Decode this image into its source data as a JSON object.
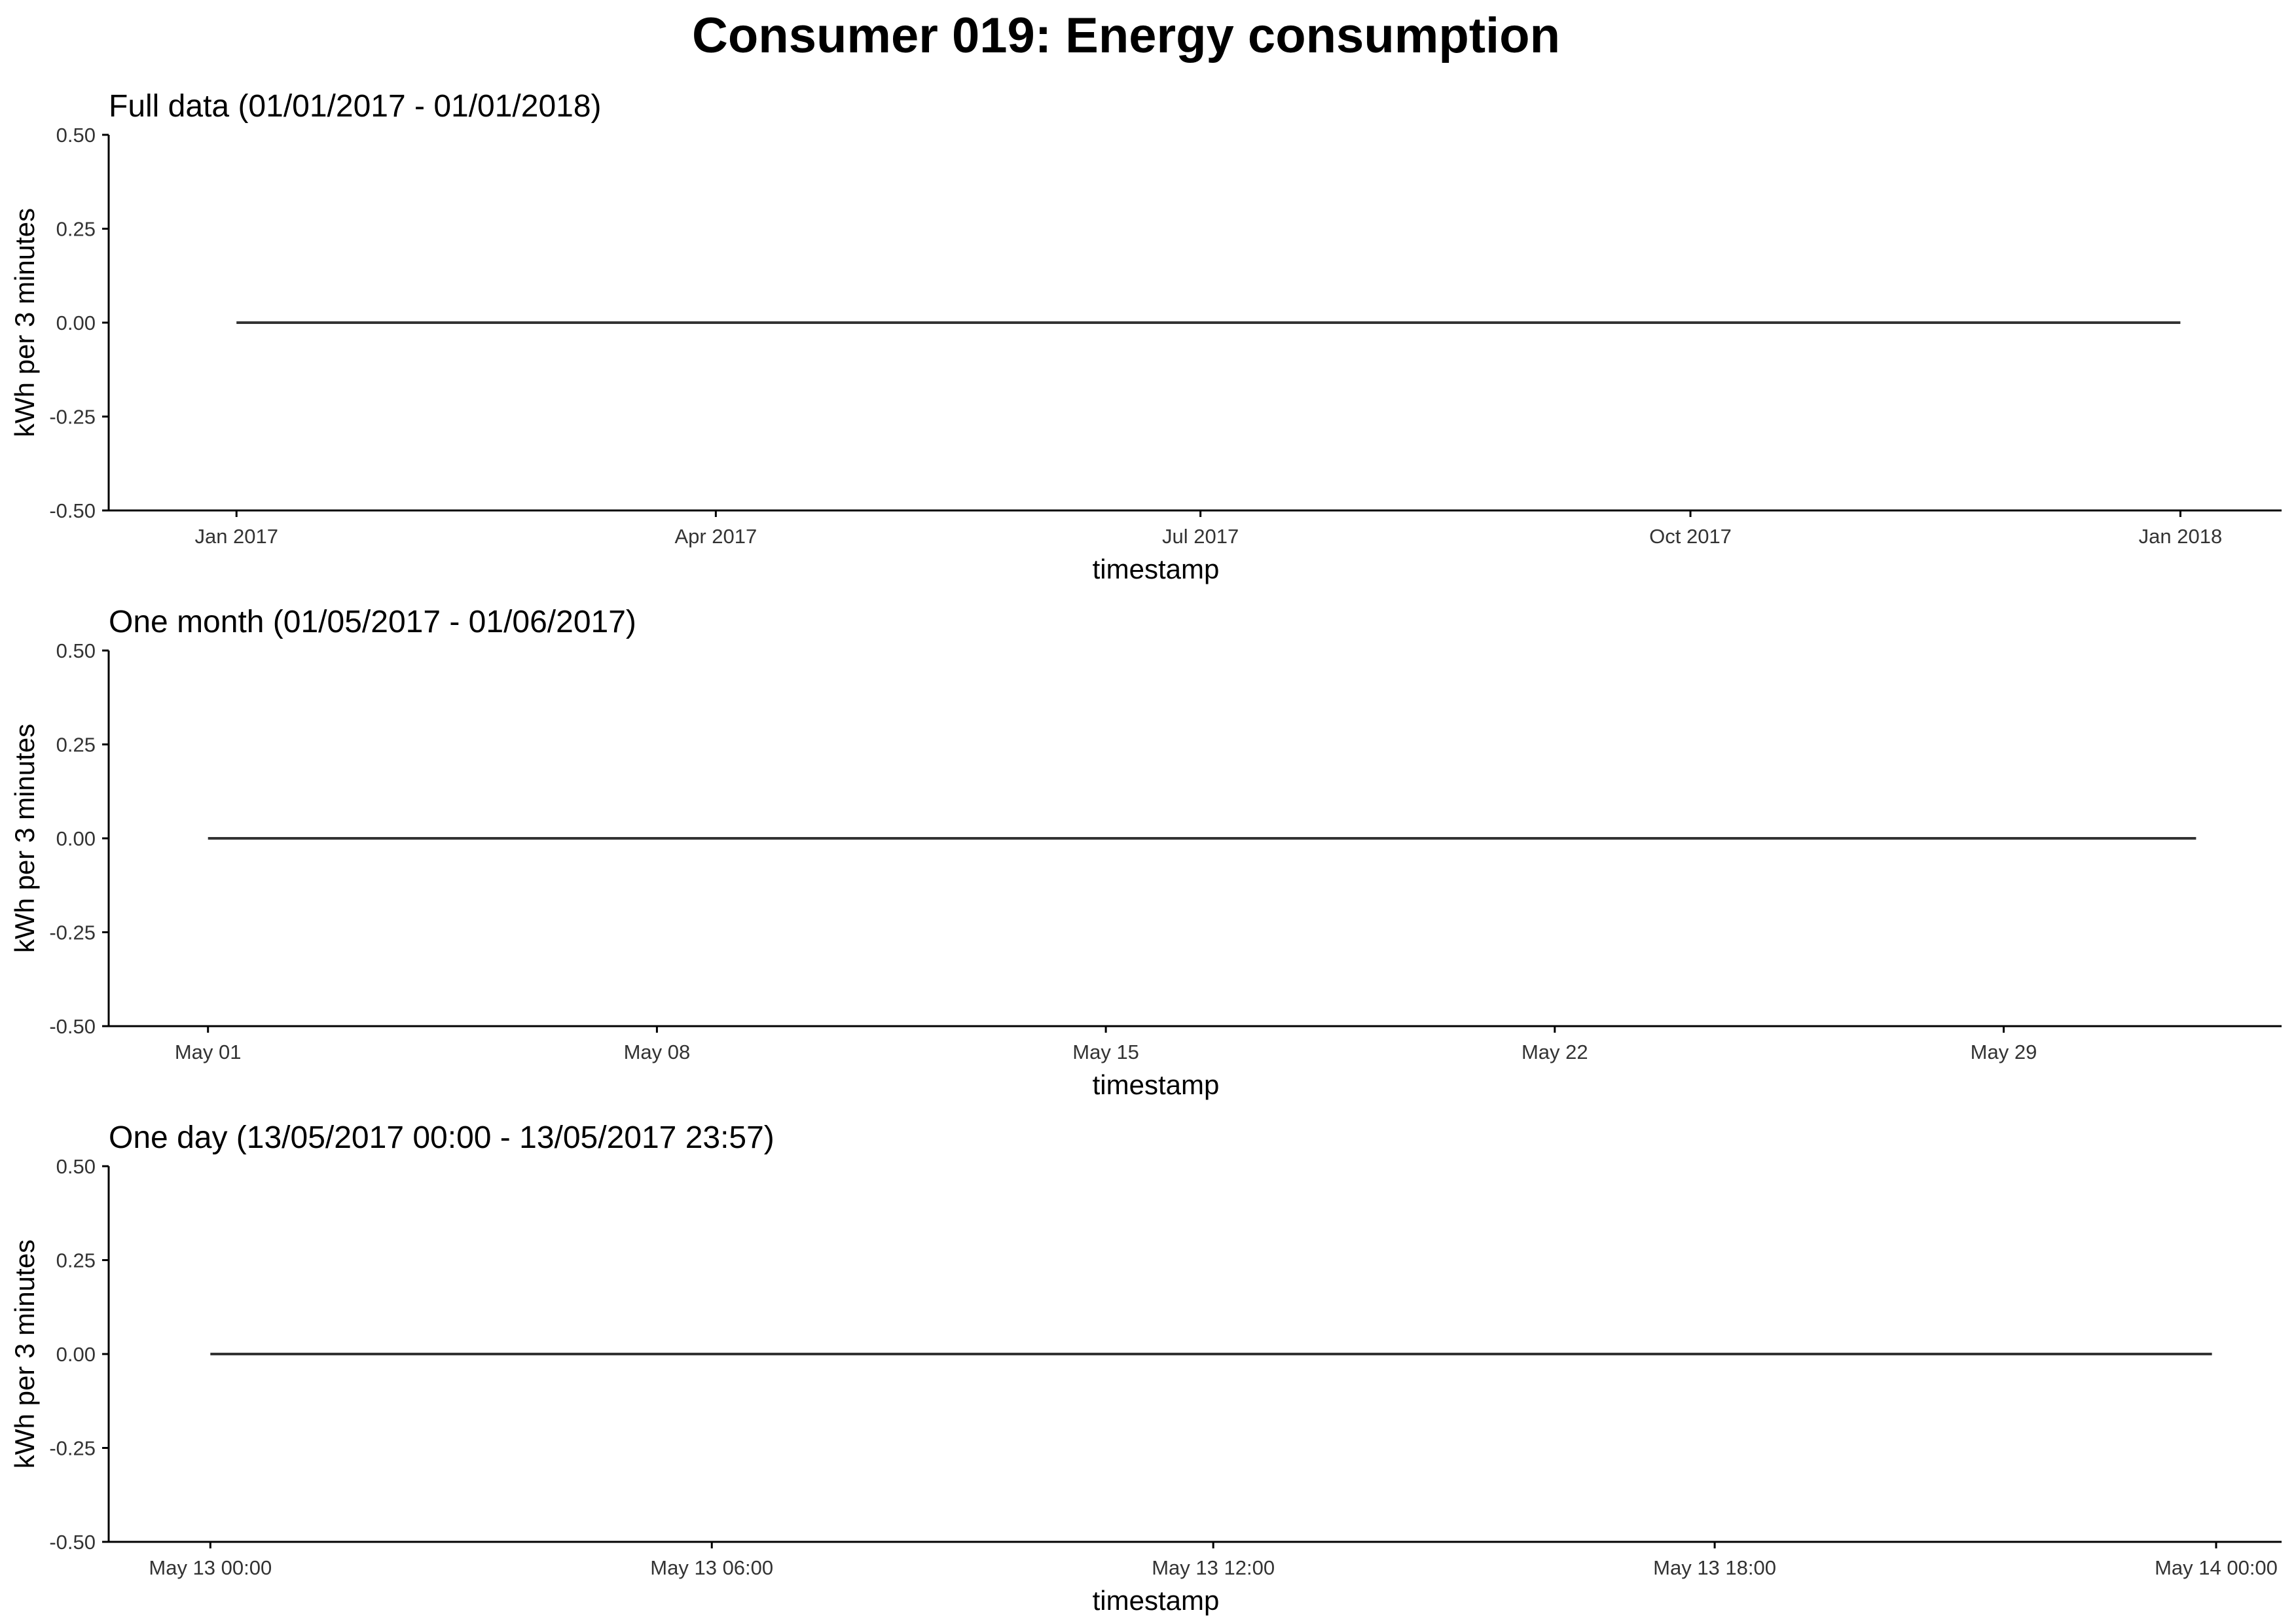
{
  "title": "Consumer 019: Energy consumption",
  "colors": {
    "line": "#333333",
    "axis": "#000000",
    "tick_text": "#333333",
    "background": "#ffffff"
  },
  "chart_data": [
    {
      "type": "line",
      "subtitle": "Full data (01/01/2017 - 01/01/2018)",
      "xlabel": "timestamp",
      "ylabel": "kWh per 3 minutes",
      "ylim": [
        -0.5,
        0.5
      ],
      "yticks": [
        "0.50",
        "0.25",
        "0.00",
        "-0.25",
        "-0.50"
      ],
      "xlim": [
        "2016-12-08",
        "2018-01-20"
      ],
      "xticks": [
        {
          "value": "2017-01-01",
          "label": "Jan 2017"
        },
        {
          "value": "2017-04-01",
          "label": "Apr 2017"
        },
        {
          "value": "2017-07-01",
          "label": "Jul 2017"
        },
        {
          "value": "2017-10-01",
          "label": "Oct 2017"
        },
        {
          "value": "2018-01-01",
          "label": "Jan 2018"
        }
      ],
      "series": [
        {
          "x": [
            "2017-01-01",
            "2018-01-01"
          ],
          "y": [
            0,
            0
          ]
        }
      ],
      "grid": false
    },
    {
      "type": "line",
      "subtitle": "One month (01/05/2017 - 01/06/2017)",
      "xlabel": "timestamp",
      "ylabel": "kWh per 3 minutes",
      "ylim": [
        -0.5,
        0.5
      ],
      "yticks": [
        "0.50",
        "0.25",
        "0.00",
        "-0.25",
        "-0.50"
      ],
      "xlim": [
        "2017-04-29T10:50",
        "2017-06-02T08:00"
      ],
      "xticks": [
        {
          "value": "2017-05-01",
          "label": "May 01"
        },
        {
          "value": "2017-05-08",
          "label": "May 08"
        },
        {
          "value": "2017-05-15",
          "label": "May 15"
        },
        {
          "value": "2017-05-22",
          "label": "May 22"
        },
        {
          "value": "2017-05-29",
          "label": "May 29"
        }
      ],
      "series": [
        {
          "x": [
            "2017-05-01",
            "2017-06-01"
          ],
          "y": [
            0,
            0
          ]
        }
      ],
      "grid": false
    },
    {
      "type": "line",
      "subtitle": "One day (13/05/2017 00:00 - 13/05/2017 23:57)",
      "xlabel": "timestamp",
      "ylabel": "kWh per 3 minutes",
      "ylim": [
        -0.5,
        0.5
      ],
      "yticks": [
        "0.50",
        "0.25",
        "0.00",
        "-0.25",
        "-0.50"
      ],
      "xlim": [
        "2017-05-12T22:47",
        "2017-05-14T00:47"
      ],
      "xticks": [
        {
          "value": "2017-05-13T00:00",
          "label": "May 13 00:00"
        },
        {
          "value": "2017-05-13T06:00",
          "label": "May 13 06:00"
        },
        {
          "value": "2017-05-13T12:00",
          "label": "May 13 12:00"
        },
        {
          "value": "2017-05-13T18:00",
          "label": "May 13 18:00"
        },
        {
          "value": "2017-05-14T00:00",
          "label": "May 14 00:00"
        }
      ],
      "series": [
        {
          "x": [
            "2017-05-13T00:00",
            "2017-05-13T23:57"
          ],
          "y": [
            0,
            0
          ]
        }
      ],
      "grid": false
    }
  ]
}
